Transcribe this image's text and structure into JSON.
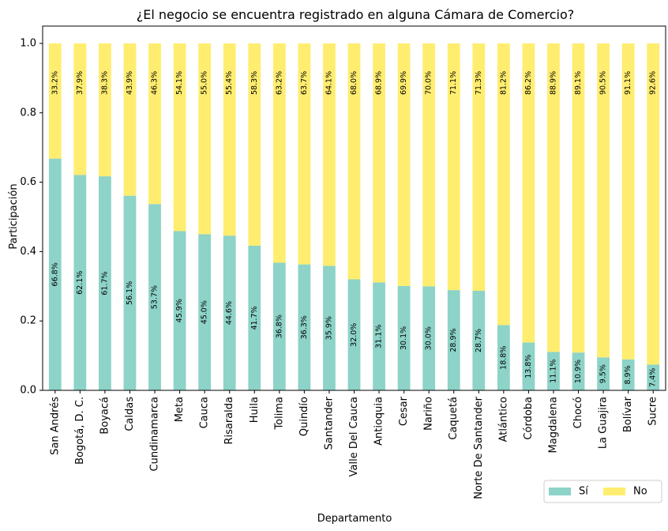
{
  "chart_data": {
    "type": "bar",
    "stacked": true,
    "title": "¿El negocio se encuentra registrado en alguna Cámara de Comercio?",
    "xlabel": "Departamento",
    "ylabel": "Participación",
    "ylim": [
      0,
      1.05
    ],
    "yticks": [
      "0.0",
      "0.2",
      "0.4",
      "0.6",
      "0.8",
      "1.0"
    ],
    "grid": false,
    "legend_position": "bottom-right",
    "categories": [
      "San Andrés",
      "Bogotá, D. C.",
      "Boyacá",
      "Caldas",
      "Cundinamarca",
      "Meta",
      "Cauca",
      "Risaralda",
      "Huila",
      "Tolima",
      "Quindío",
      "Santander",
      "Valle Del Cauca",
      "Antioquia",
      "Cesar",
      "Nariño",
      "Caquetá",
      "Norte De Santander",
      "Atlántico",
      "Córdoba",
      "Magdalena",
      "Chocó",
      "La Guajira",
      "Bolívar",
      "Sucre"
    ],
    "series": [
      {
        "name": "Sí",
        "color": "#8dd3c7",
        "values": [
          0.668,
          0.621,
          0.617,
          0.561,
          0.537,
          0.459,
          0.45,
          0.446,
          0.417,
          0.368,
          0.363,
          0.359,
          0.32,
          0.311,
          0.301,
          0.3,
          0.289,
          0.287,
          0.188,
          0.138,
          0.111,
          0.109,
          0.095,
          0.089,
          0.074
        ],
        "labels": [
          "66.8%",
          "62.1%",
          "61.7%",
          "56.1%",
          "53.7%",
          "45.9%",
          "45.0%",
          "44.6%",
          "41.7%",
          "36.8%",
          "36.3%",
          "35.9%",
          "32.0%",
          "31.1%",
          "30.1%",
          "30.0%",
          "28.9%",
          "28.7%",
          "18.8%",
          "13.8%",
          "11.1%",
          "10.9%",
          "9.5%",
          "8.9%",
          "7.4%"
        ]
      },
      {
        "name": "No",
        "color": "#ffed6f",
        "values": [
          0.332,
          0.379,
          0.383,
          0.439,
          0.463,
          0.541,
          0.55,
          0.554,
          0.583,
          0.632,
          0.637,
          0.641,
          0.68,
          0.689,
          0.699,
          0.7,
          0.711,
          0.713,
          0.812,
          0.862,
          0.889,
          0.891,
          0.905,
          0.911,
          0.926
        ],
        "labels": [
          "33.2%",
          "37.9%",
          "38.3%",
          "43.9%",
          "46.3%",
          "54.1%",
          "55.0%",
          "55.4%",
          "58.3%",
          "63.2%",
          "63.7%",
          "64.1%",
          "68.0%",
          "68.9%",
          "69.9%",
          "70.0%",
          "71.1%",
          "71.3%",
          "81.2%",
          "86.2%",
          "88.9%",
          "89.1%",
          "90.5%",
          "91.1%",
          "92.6%"
        ]
      }
    ]
  }
}
